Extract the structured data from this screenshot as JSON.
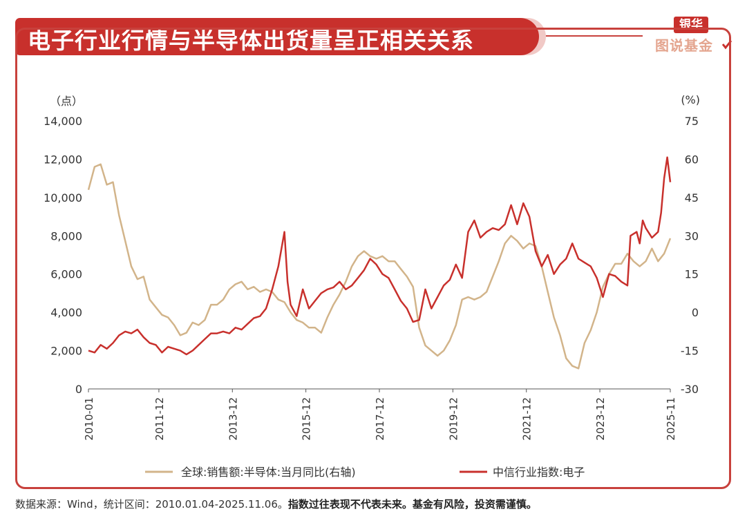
{
  "header": {
    "title": "电子行业行情与半导体出货量呈正相关关系"
  },
  "logo": {
    "top": "银华",
    "bottom": "图说基金"
  },
  "footer": {
    "source": "数据来源：Wind，统计区间：2010.01.04-2025.11.06。",
    "disclaimer": "指数过往表现不代表未来。基金有风险，投资需谨慎。"
  },
  "chart_data": {
    "type": "line",
    "y_left_unit": "（点）",
    "y_right_unit": "(%)",
    "y_left_lim": [
      0,
      14000
    ],
    "y_right_lim": [
      -30,
      75
    ],
    "y_left_ticks": [
      "0",
      "2,000",
      "4,000",
      "6,000",
      "8,000",
      "10,000",
      "12,000",
      "14,000"
    ],
    "y_right_ticks": [
      "-30",
      "-15",
      "0",
      "15",
      "30",
      "45",
      "60",
      "75"
    ],
    "x_ticks": [
      "2010-01",
      "2011-12",
      "2013-12",
      "2015-12",
      "2017-12",
      "2019-12",
      "2021-12",
      "2023-12",
      "2025-11"
    ],
    "legend_position": "bottom",
    "grid": false,
    "series": [
      {
        "name": "全球:销售额:半导体:当月同比(右轴)",
        "axis": "right",
        "color": "#d2b48a",
        "points": [
          [
            "2010-01",
            48
          ],
          [
            "2010-03",
            57
          ],
          [
            "2010-05",
            58
          ],
          [
            "2010-07",
            50
          ],
          [
            "2010-09",
            51
          ],
          [
            "2010-11",
            38
          ],
          [
            "2011-01",
            28
          ],
          [
            "2011-03",
            18
          ],
          [
            "2011-05",
            13
          ],
          [
            "2011-07",
            14
          ],
          [
            "2011-09",
            5
          ],
          [
            "2011-11",
            2
          ],
          [
            "2012-01",
            -1
          ],
          [
            "2012-03",
            -2
          ],
          [
            "2012-05",
            -5
          ],
          [
            "2012-07",
            -9
          ],
          [
            "2012-09",
            -8
          ],
          [
            "2012-11",
            -4
          ],
          [
            "2013-01",
            -5
          ],
          [
            "2013-03",
            -3
          ],
          [
            "2013-05",
            3
          ],
          [
            "2013-07",
            3
          ],
          [
            "2013-09",
            5
          ],
          [
            "2013-11",
            9
          ],
          [
            "2014-01",
            11
          ],
          [
            "2014-03",
            12
          ],
          [
            "2014-05",
            9
          ],
          [
            "2014-07",
            10
          ],
          [
            "2014-09",
            8
          ],
          [
            "2014-11",
            9
          ],
          [
            "2015-01",
            8
          ],
          [
            "2015-03",
            5
          ],
          [
            "2015-05",
            4
          ],
          [
            "2015-07",
            0
          ],
          [
            "2015-09",
            -3
          ],
          [
            "2015-11",
            -4
          ],
          [
            "2016-01",
            -6
          ],
          [
            "2016-03",
            -6
          ],
          [
            "2016-05",
            -8
          ],
          [
            "2016-07",
            -2
          ],
          [
            "2016-09",
            3
          ],
          [
            "2016-11",
            7
          ],
          [
            "2017-01",
            12
          ],
          [
            "2017-03",
            18
          ],
          [
            "2017-05",
            22
          ],
          [
            "2017-07",
            24
          ],
          [
            "2017-09",
            22
          ],
          [
            "2017-11",
            21
          ],
          [
            "2018-01",
            22
          ],
          [
            "2018-03",
            20
          ],
          [
            "2018-05",
            20
          ],
          [
            "2018-07",
            17
          ],
          [
            "2018-09",
            14
          ],
          [
            "2018-11",
            10
          ],
          [
            "2019-01",
            -6
          ],
          [
            "2019-03",
            -13
          ],
          [
            "2019-05",
            -15
          ],
          [
            "2019-07",
            -17
          ],
          [
            "2019-09",
            -15
          ],
          [
            "2019-11",
            -11
          ],
          [
            "2020-01",
            -5
          ],
          [
            "2020-03",
            5
          ],
          [
            "2020-05",
            6
          ],
          [
            "2020-07",
            5
          ],
          [
            "2020-09",
            6
          ],
          [
            "2020-11",
            8
          ],
          [
            "2021-01",
            14
          ],
          [
            "2021-03",
            20
          ],
          [
            "2021-05",
            27
          ],
          [
            "2021-07",
            30
          ],
          [
            "2021-09",
            28
          ],
          [
            "2021-11",
            25
          ],
          [
            "2022-01",
            27
          ],
          [
            "2022-03",
            26
          ],
          [
            "2022-05",
            18
          ],
          [
            "2022-07",
            8
          ],
          [
            "2022-09",
            -2
          ],
          [
            "2022-11",
            -9
          ],
          [
            "2023-01",
            -18
          ],
          [
            "2023-03",
            -21
          ],
          [
            "2023-05",
            -22
          ],
          [
            "2023-07",
            -12
          ],
          [
            "2023-09",
            -7
          ],
          [
            "2023-11",
            0
          ],
          [
            "2024-01",
            10
          ],
          [
            "2024-03",
            15
          ],
          [
            "2024-05",
            19
          ],
          [
            "2024-07",
            19
          ],
          [
            "2024-09",
            23
          ],
          [
            "2024-11",
            20
          ],
          [
            "2025-01",
            18
          ],
          [
            "2025-03",
            20
          ],
          [
            "2025-05",
            25
          ],
          [
            "2025-07",
            20
          ],
          [
            "2025-09",
            23
          ],
          [
            "2025-11",
            29
          ]
        ]
      },
      {
        "name": "中信行业指数:电子",
        "axis": "left",
        "color": "#c8302c",
        "points": [
          [
            "2010-01",
            2000
          ],
          [
            "2010-03",
            1900
          ],
          [
            "2010-05",
            2300
          ],
          [
            "2010-07",
            2100
          ],
          [
            "2010-09",
            2400
          ],
          [
            "2010-11",
            2800
          ],
          [
            "2011-01",
            3000
          ],
          [
            "2011-03",
            2900
          ],
          [
            "2011-05",
            3100
          ],
          [
            "2011-07",
            2700
          ],
          [
            "2011-09",
            2400
          ],
          [
            "2011-11",
            2300
          ],
          [
            "2012-01",
            1900
          ],
          [
            "2012-03",
            2200
          ],
          [
            "2012-05",
            2100
          ],
          [
            "2012-07",
            2000
          ],
          [
            "2012-09",
            1800
          ],
          [
            "2012-11",
            2000
          ],
          [
            "2013-01",
            2300
          ],
          [
            "2013-03",
            2600
          ],
          [
            "2013-05",
            2900
          ],
          [
            "2013-07",
            2900
          ],
          [
            "2013-09",
            3000
          ],
          [
            "2013-11",
            2900
          ],
          [
            "2014-01",
            3200
          ],
          [
            "2014-03",
            3100
          ],
          [
            "2014-05",
            3400
          ],
          [
            "2014-07",
            3700
          ],
          [
            "2014-09",
            3800
          ],
          [
            "2014-11",
            4200
          ],
          [
            "2015-01",
            5200
          ],
          [
            "2015-03",
            6400
          ],
          [
            "2015-05",
            8200
          ],
          [
            "2015-06",
            5600
          ],
          [
            "2015-07",
            4400
          ],
          [
            "2015-09",
            3800
          ],
          [
            "2015-11",
            5200
          ],
          [
            "2016-01",
            4200
          ],
          [
            "2016-03",
            4600
          ],
          [
            "2016-05",
            5000
          ],
          [
            "2016-07",
            5200
          ],
          [
            "2016-09",
            5300
          ],
          [
            "2016-11",
            5600
          ],
          [
            "2017-01",
            5200
          ],
          [
            "2017-03",
            5400
          ],
          [
            "2017-05",
            5800
          ],
          [
            "2017-07",
            6200
          ],
          [
            "2017-09",
            6800
          ],
          [
            "2017-11",
            6500
          ],
          [
            "2018-01",
            6000
          ],
          [
            "2018-03",
            5800
          ],
          [
            "2018-05",
            5200
          ],
          [
            "2018-07",
            4600
          ],
          [
            "2018-09",
            4200
          ],
          [
            "2018-11",
            3500
          ],
          [
            "2019-01",
            3600
          ],
          [
            "2019-03",
            5200
          ],
          [
            "2019-05",
            4200
          ],
          [
            "2019-07",
            4800
          ],
          [
            "2019-09",
            5400
          ],
          [
            "2019-11",
            5700
          ],
          [
            "2020-01",
            6500
          ],
          [
            "2020-03",
            5800
          ],
          [
            "2020-05",
            8200
          ],
          [
            "2020-07",
            8800
          ],
          [
            "2020-09",
            7900
          ],
          [
            "2020-11",
            8200
          ],
          [
            "2021-01",
            8400
          ],
          [
            "2021-03",
            8300
          ],
          [
            "2021-05",
            8600
          ],
          [
            "2021-07",
            9600
          ],
          [
            "2021-09",
            8600
          ],
          [
            "2021-11",
            9700
          ],
          [
            "2022-01",
            9000
          ],
          [
            "2022-03",
            7200
          ],
          [
            "2022-05",
            6400
          ],
          [
            "2022-07",
            7000
          ],
          [
            "2022-09",
            6000
          ],
          [
            "2022-11",
            6500
          ],
          [
            "2023-01",
            6800
          ],
          [
            "2023-03",
            7600
          ],
          [
            "2023-05",
            6800
          ],
          [
            "2023-07",
            6600
          ],
          [
            "2023-09",
            6400
          ],
          [
            "2023-11",
            5800
          ],
          [
            "2024-01",
            4800
          ],
          [
            "2024-03",
            6000
          ],
          [
            "2024-05",
            5900
          ],
          [
            "2024-07",
            5600
          ],
          [
            "2024-09",
            5400
          ],
          [
            "2024-10",
            8000
          ],
          [
            "2024-12",
            8200
          ],
          [
            "2025-01",
            7600
          ],
          [
            "2025-02",
            8800
          ],
          [
            "2025-03",
            8400
          ],
          [
            "2025-05",
            7900
          ],
          [
            "2025-07",
            8200
          ],
          [
            "2025-08",
            9200
          ],
          [
            "2025-09",
            11000
          ],
          [
            "2025-10",
            12100
          ],
          [
            "2025-11",
            10800
          ]
        ]
      }
    ]
  }
}
